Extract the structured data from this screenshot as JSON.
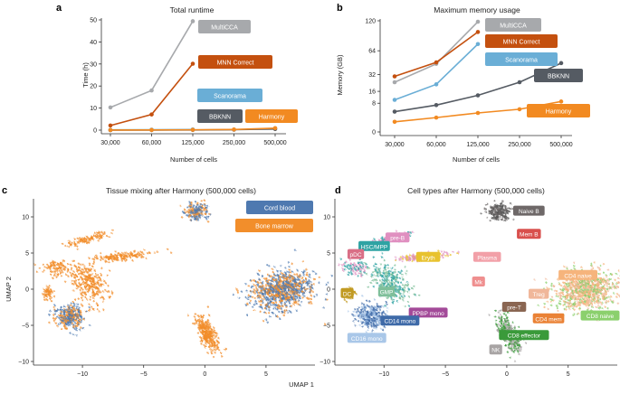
{
  "panels": {
    "a": {
      "letter": "a"
    },
    "b": {
      "letter": "b"
    },
    "c": {
      "letter": "c"
    },
    "d": {
      "letter": "d"
    }
  },
  "chart_data": [
    {
      "id": "a",
      "type": "line",
      "title": "Total runtime",
      "xlabel": "Number of cells",
      "ylabel": "Time (h)",
      "categories": [
        "30,000",
        "60,000",
        "125,000",
        "250,000",
        "500,000"
      ],
      "yticks": [
        0,
        10,
        20,
        30,
        40,
        50
      ],
      "ylim": [
        0,
        50
      ],
      "grid": false,
      "series": [
        {
          "name": "MultiCCA",
          "color": "#a7a9ac",
          "values": [
            10.3,
            18,
            49.4,
            null,
            null
          ]
        },
        {
          "name": "MNN Correct",
          "color": "#c4500f",
          "values": [
            2.1,
            7.1,
            30.1,
            null,
            null
          ]
        },
        {
          "name": "Scanorama",
          "color": "#6aaed6",
          "values": [
            0.1,
            0.2,
            0.3,
            null,
            null
          ]
        },
        {
          "name": "BBKNN",
          "color": "#555b63",
          "values": [
            0.02,
            0.04,
            0.08,
            0.2,
            0.5
          ]
        },
        {
          "name": "Harmony",
          "color": "#f28a21",
          "values": [
            0.03,
            0.06,
            0.15,
            0.3,
            0.9
          ]
        }
      ]
    },
    {
      "id": "b",
      "type": "line",
      "title": "Maximum memory usage",
      "xlabel": "Number of cells",
      "ylabel": "Memory (GB)",
      "categories": [
        "30,000",
        "60,000",
        "125,000",
        "250,000",
        "500,000"
      ],
      "yticks": [
        0,
        8,
        16,
        32,
        64,
        120
      ],
      "yscale": "sqrt",
      "ylim": [
        0,
        120
      ],
      "grid": false,
      "series": [
        {
          "name": "MultiCCA",
          "color": "#a7a9ac",
          "values": [
            24,
            45,
            118,
            null,
            null
          ]
        },
        {
          "name": "MNN Correct",
          "color": "#c4500f",
          "values": [
            30,
            47,
            97,
            null,
            null
          ]
        },
        {
          "name": "Scanorama",
          "color": "#6aaed6",
          "values": [
            10,
            22,
            75,
            null,
            null
          ]
        },
        {
          "name": "BBKNN",
          "color": "#555b63",
          "values": [
            4,
            7,
            13,
            24,
            46
          ]
        },
        {
          "name": "Harmony",
          "color": "#f28a21",
          "values": [
            1,
            2,
            3.5,
            5,
            9
          ]
        }
      ]
    },
    {
      "id": "c",
      "type": "scatter",
      "title": "Tissue mixing after Harmony (500,000 cells)",
      "xlabel": "UMAP 1",
      "ylabel": "UMAP 2",
      "xlim": [
        -14,
        9
      ],
      "ylim": [
        -10.5,
        12.5
      ],
      "xticks": [
        -10,
        -5,
        0,
        5
      ],
      "yticks": [
        -10,
        -5,
        0,
        5,
        10
      ],
      "legend_position": "top-right",
      "series": [
        {
          "name": "Cord blood",
          "color": "#4e79b0"
        },
        {
          "name": "Bone marrow",
          "color": "#f28e2b"
        }
      ]
    },
    {
      "id": "d",
      "type": "scatter",
      "title": "Cell types after Harmony (500,000 cells)",
      "xlim": [
        -14,
        9
      ],
      "ylim": [
        -10.5,
        12.5
      ],
      "xticks": [
        -10,
        -5,
        0,
        5
      ],
      "yticks": [
        -10,
        -5,
        0,
        5,
        10
      ],
      "labels": [
        {
          "text": "Naive B",
          "color": "#6e6868",
          "x": 1.8,
          "y": 10.8
        },
        {
          "text": "Mem B",
          "color": "#d9504d",
          "x": 1.8,
          "y": 7.6
        },
        {
          "text": "pre-B",
          "color": "#e08fc0",
          "x": -8.9,
          "y": 7.1
        },
        {
          "text": "HSC/MPP",
          "color": "#2ea3a3",
          "x": -10.8,
          "y": 5.9
        },
        {
          "text": "pDC",
          "color": "#d96f86",
          "x": -12.3,
          "y": 4.8
        },
        {
          "text": "Plasma",
          "color": "#f2a0a8",
          "x": -1.6,
          "y": 4.4
        },
        {
          "text": "Eryth",
          "color": "#e8c22e",
          "x": -6.4,
          "y": 4.4
        },
        {
          "text": "CD4 naive",
          "color": "#f6b47c",
          "x": 5.8,
          "y": 1.9
        },
        {
          "text": "Mk",
          "color": "#ef8f8f",
          "x": -2.3,
          "y": 1.0
        },
        {
          "text": "GMP",
          "color": "#7fbf9a",
          "x": -9.8,
          "y": -0.4
        },
        {
          "text": "DC",
          "color": "#c19a22",
          "x": -13.0,
          "y": -0.6
        },
        {
          "text": "Treg",
          "color": "#f0b79a",
          "x": 2.6,
          "y": -0.7
        },
        {
          "text": "PPBP mono",
          "color": "#a34a99",
          "x": -6.4,
          "y": -3.3
        },
        {
          "text": "pre-T",
          "color": "#8a6652",
          "x": 0.6,
          "y": -2.5
        },
        {
          "text": "CD14 mono",
          "color": "#3e6aa8",
          "x": -8.7,
          "y": -4.4
        },
        {
          "text": "CD4 mem",
          "color": "#ea8236",
          "x": 3.4,
          "y": -4.1
        },
        {
          "text": "CD8 naive",
          "color": "#8bd06d",
          "x": 7.6,
          "y": -3.7
        },
        {
          "text": "CD16 mono",
          "color": "#a9c7e8",
          "x": -11.4,
          "y": -6.8
        },
        {
          "text": "CD8 effector",
          "color": "#3a9a3a",
          "x": 1.4,
          "y": -6.4
        },
        {
          "text": "NK",
          "color": "#a8a4a4",
          "x": -0.9,
          "y": -8.4
        }
      ]
    }
  ]
}
